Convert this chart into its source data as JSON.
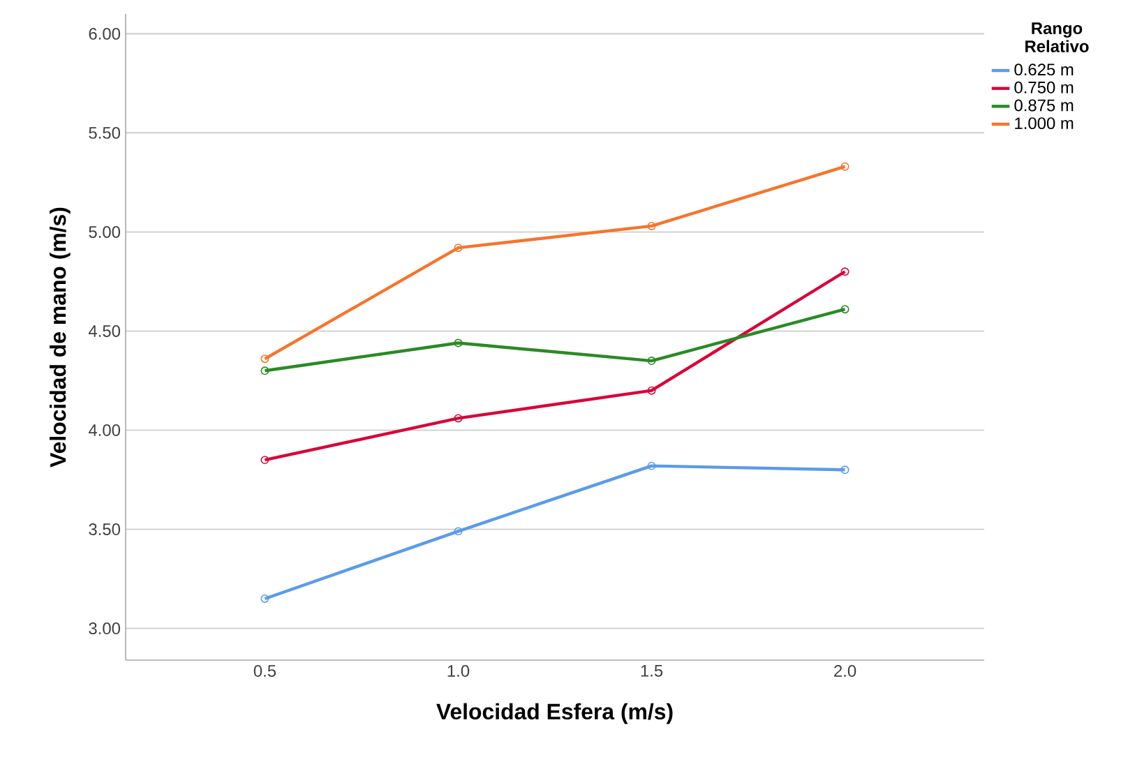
{
  "chart_data": {
    "type": "line",
    "xlabel": "Velocidad Esfera (m/s)",
    "ylabel": "Velocidad de mano (m/s)",
    "legend_title": "Rango Relativo",
    "categories": [
      "0.5",
      "1.0",
      "1.5",
      "2.0"
    ],
    "series": [
      {
        "name": "0.625 m",
        "color": "#5b9bea",
        "values": [
          3.15,
          3.49,
          3.82,
          3.8
        ]
      },
      {
        "name": "0.750 m",
        "color": "#d7073a",
        "values": [
          3.85,
          4.06,
          4.2,
          4.8
        ]
      },
      {
        "name": "0.875 m",
        "color": "#2a8a25",
        "values": [
          4.3,
          4.44,
          4.35,
          4.61
        ]
      },
      {
        "name": "1.000 m",
        "color": "#f5752e",
        "values": [
          4.36,
          4.92,
          5.03,
          5.33
        ]
      }
    ],
    "ylim": [
      2.84,
      6.1
    ],
    "yticks": [
      {
        "value": 3,
        "label": "3.00"
      },
      {
        "value": 3.5,
        "label": "3.50"
      },
      {
        "value": 4,
        "label": "4.00"
      },
      {
        "value": 4.5,
        "label": "4.50"
      },
      {
        "value": 5,
        "label": "5.00"
      },
      {
        "value": 5.5,
        "label": "5.50"
      },
      {
        "value": 6,
        "label": "6.00"
      }
    ],
    "grid": "y",
    "legend": "top right",
    "marker": "circle",
    "line_style": "solid"
  }
}
